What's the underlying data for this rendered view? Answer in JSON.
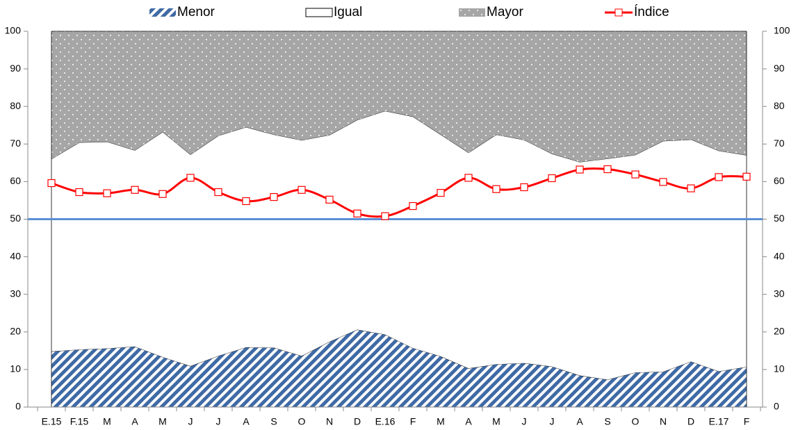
{
  "chart_data": {
    "type": "stacked-area-line",
    "categories": [
      "E.15",
      "F.15",
      "M",
      "A",
      "M",
      "J",
      "J",
      "A",
      "S",
      "O",
      "N",
      "D",
      "E.16",
      "F",
      "M",
      "A",
      "M",
      "J",
      "J",
      "A",
      "S",
      "O",
      "N",
      "D",
      "E.17",
      "F"
    ],
    "series": [
      {
        "name": "Menor",
        "color": "#3f6aa5",
        "values": [
          14.8,
          15.3,
          15.6,
          16.1,
          13.3,
          10.9,
          13.6,
          15.9,
          15.8,
          13.6,
          17.4,
          20.6,
          19.3,
          15.7,
          13.5,
          10.3,
          11.4,
          11.7,
          10.8,
          8.4,
          7.3,
          9.2,
          9.4,
          12.1,
          9.5,
          10.7
        ]
      },
      {
        "name": "Igual",
        "color": "#ffffff",
        "values": [
          51.2,
          55.1,
          55.0,
          52.2,
          59.9,
          56.3,
          58.6,
          58.6,
          56.7,
          57.4,
          55.0,
          55.8,
          59.5,
          61.6,
          59.0,
          57.4,
          61.1,
          59.4,
          56.6,
          56.8,
          58.8,
          57.9,
          61.4,
          59.1,
          58.7,
          56.3
        ]
      },
      {
        "name": "Mayor",
        "color": "#a6a6a6",
        "values": [
          34.0,
          29.6,
          29.4,
          31.7,
          26.8,
          32.8,
          27.8,
          25.5,
          27.5,
          29.0,
          27.6,
          23.6,
          21.2,
          22.7,
          27.5,
          32.3,
          27.5,
          28.9,
          32.6,
          34.8,
          33.9,
          32.9,
          29.2,
          28.8,
          31.8,
          33.0
        ]
      },
      {
        "name": "Índice",
        "color": "#ff0000",
        "line": true,
        "values": [
          59.6,
          57.2,
          56.9,
          57.8,
          56.7,
          61.0,
          57.2,
          54.8,
          55.9,
          57.8,
          55.2,
          51.5,
          50.8,
          53.5,
          57.0,
          61.0,
          58.0,
          58.5,
          60.9,
          63.2,
          63.3,
          61.9,
          59.9,
          58.2,
          61.2,
          61.3
        ]
      }
    ],
    "reference_line": {
      "value": 50,
      "color": "#5b8fd6"
    },
    "ylim": [
      0,
      100
    ],
    "yticks": [
      0,
      10,
      20,
      30,
      40,
      50,
      60,
      70,
      80,
      90,
      100
    ],
    "y2lim": [
      0,
      100
    ],
    "y2ticks": [
      0,
      10,
      20,
      30,
      40,
      50,
      60,
      70,
      80,
      90,
      100
    ]
  }
}
